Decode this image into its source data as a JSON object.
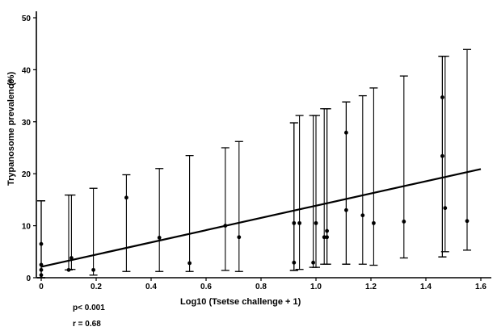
{
  "chart_data": {
    "type": "scatter",
    "title": "",
    "xlabel": "Log10 (Tsetse challenge + 1)",
    "ylabel": "Trypanosome prevalence",
    "ylabel_unit": "(%)",
    "xlim": [
      0,
      1.6
    ],
    "ylim": [
      0,
      50
    ],
    "xticks": [
      0,
      0.2,
      0.4,
      0.6,
      0.8,
      1.0,
      1.2,
      1.4,
      1.6
    ],
    "xtick_labels": [
      "0",
      "0.2",
      "0.4",
      "0.6",
      "0.8",
      "1.0",
      "1.2",
      "1.4",
      "1.6"
    ],
    "yticks": [
      0,
      10,
      20,
      30,
      40,
      50
    ],
    "ytick_labels": [
      "0",
      "10",
      "20",
      "30",
      "40",
      "50"
    ],
    "grid": false,
    "legend": "none",
    "series": [
      {
        "values": [
          {
            "x": 0.0,
            "y": 6.5,
            "err_low": 0.0,
            "err_high": 14.8
          },
          {
            "x": 0.0,
            "y": 2.5,
            "err_low": 0.0,
            "err_high": 14.8
          },
          {
            "x": 0.0,
            "y": 1.5,
            "err_low": 0.0,
            "err_high": 14.8
          },
          {
            "x": 0.0,
            "y": 0.5,
            "err_low": 0.0,
            "err_high": 14.8
          },
          {
            "x": 0.1,
            "y": 1.5,
            "err_low": 1.5,
            "err_high": 15.9
          },
          {
            "x": 0.11,
            "y": 3.8,
            "err_low": 1.6,
            "err_high": 15.9
          },
          {
            "x": 0.19,
            "y": 1.5,
            "err_low": 0.5,
            "err_high": 17.2
          },
          {
            "x": 0.31,
            "y": 15.4,
            "err_low": 1.2,
            "err_high": 19.8
          },
          {
            "x": 0.43,
            "y": 7.7,
            "err_low": 1.2,
            "err_high": 21.0
          },
          {
            "x": 0.54,
            "y": 2.8,
            "err_low": 1.2,
            "err_high": 23.5
          },
          {
            "x": 0.67,
            "y": 10.0,
            "err_low": 1.4,
            "err_high": 25.0
          },
          {
            "x": 0.72,
            "y": 7.8,
            "err_low": 1.2,
            "err_high": 26.2
          },
          {
            "x": 0.92,
            "y": 10.5,
            "err_low": 1.4,
            "err_high": 29.8
          },
          {
            "x": 0.92,
            "y": 2.9,
            "err_low": 1.4,
            "err_high": 29.8
          },
          {
            "x": 0.94,
            "y": 10.5,
            "err_low": 1.6,
            "err_high": 31.2
          },
          {
            "x": 0.99,
            "y": 2.9,
            "err_low": 2.0,
            "err_high": 31.2
          },
          {
            "x": 1.0,
            "y": 10.5,
            "err_low": 2.0,
            "err_high": 31.2
          },
          {
            "x": 1.03,
            "y": 7.8,
            "err_low": 2.6,
            "err_high": 32.5
          },
          {
            "x": 1.04,
            "y": 7.8,
            "err_low": 2.6,
            "err_high": 32.5
          },
          {
            "x": 1.04,
            "y": 9.0,
            "err_low": 2.6,
            "err_high": 32.5
          },
          {
            "x": 1.11,
            "y": 27.9,
            "err_low": 2.6,
            "err_high": 33.8
          },
          {
            "x": 1.11,
            "y": 13.0,
            "err_low": 2.6,
            "err_high": 33.8
          },
          {
            "x": 1.17,
            "y": 12.0,
            "err_low": 2.6,
            "err_high": 35.0
          },
          {
            "x": 1.21,
            "y": 10.5,
            "err_low": 2.4,
            "err_high": 36.5
          },
          {
            "x": 1.32,
            "y": 10.8,
            "err_low": 3.8,
            "err_high": 38.8
          },
          {
            "x": 1.46,
            "y": 34.7,
            "err_low": 4.0,
            "err_high": 42.6
          },
          {
            "x": 1.46,
            "y": 23.4,
            "err_low": 4.0,
            "err_high": 42.6
          },
          {
            "x": 1.47,
            "y": 13.4,
            "err_low": 5.0,
            "err_high": 42.6
          },
          {
            "x": 1.55,
            "y": 10.9,
            "err_low": 5.3,
            "err_high": 43.9
          }
        ]
      }
    ],
    "regression_line": {
      "x": [
        0,
        1.6
      ],
      "y": [
        2.1,
        20.9
      ]
    },
    "annotations": [
      "p< 0.001",
      "r = 0.68"
    ]
  }
}
